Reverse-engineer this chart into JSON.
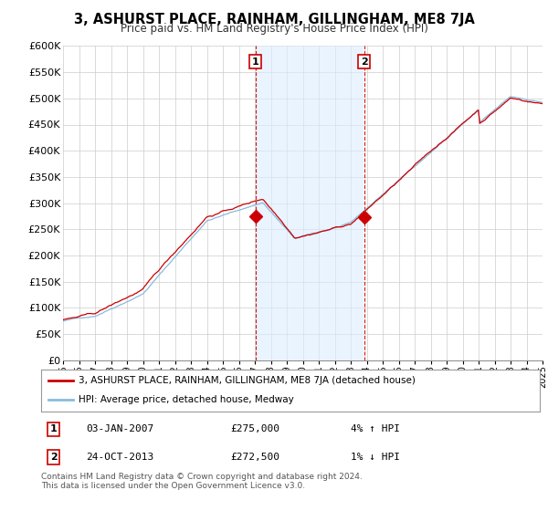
{
  "title": "3, ASHURST PLACE, RAINHAM, GILLINGHAM, ME8 7JA",
  "subtitle": "Price paid vs. HM Land Registry's House Price Index (HPI)",
  "ylabel_ticks": [
    "£0",
    "£50K",
    "£100K",
    "£150K",
    "£200K",
    "£250K",
    "£300K",
    "£350K",
    "£400K",
    "£450K",
    "£500K",
    "£550K",
    "£600K"
  ],
  "ytick_values": [
    0,
    50000,
    100000,
    150000,
    200000,
    250000,
    300000,
    350000,
    400000,
    450000,
    500000,
    550000,
    600000
  ],
  "sale1_year": 2007.04,
  "sale1_price": 275000,
  "sale1_label": "1",
  "sale2_year": 2013.83,
  "sale2_price": 272500,
  "sale2_label": "2",
  "legend_line1": "3, ASHURST PLACE, RAINHAM, GILLINGHAM, ME8 7JA (detached house)",
  "legend_line2": "HPI: Average price, detached house, Medway",
  "footer": "Contains HM Land Registry data © Crown copyright and database right 2024.\nThis data is licensed under the Open Government Licence v3.0.",
  "line_color_price": "#cc0000",
  "line_color_hpi": "#88bbdd",
  "shading_color": "#ddeeff",
  "background_color": "#ffffff",
  "grid_color": "#cccccc",
  "label_box_color": "#cc0000",
  "xmin": 1995,
  "xmax": 2025,
  "ymin": 0,
  "ymax": 600000
}
